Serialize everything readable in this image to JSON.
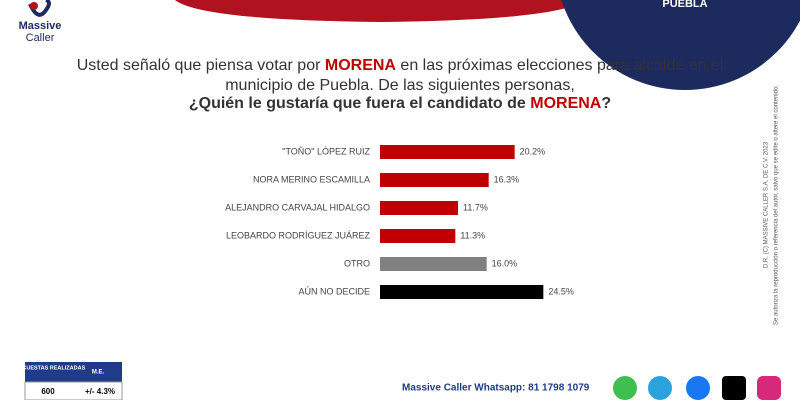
{
  "header": {
    "brand_line1": "Massive",
    "brand_line2": "Caller",
    "region": "PUEBLA"
  },
  "chart_data": {
    "type": "hbar",
    "question": [
      [
        {
          "text": "Usted señaló que piensa votar por ",
          "style": "normal"
        },
        {
          "text": "MORENA",
          "style": "bold-red"
        },
        {
          "text": " en las próximas elecciones para alcalde en el",
          "style": "normal"
        }
      ],
      [
        {
          "text": "municipio de Puebla.  De las siguientes personas,",
          "style": "normal"
        }
      ],
      [
        {
          "text": "¿Quién le gustaría que fuera el candidato de ",
          "style": "bold"
        },
        {
          "text": "MORENA",
          "style": "bold-red"
        },
        {
          "text": "?",
          "style": "bold"
        }
      ]
    ],
    "categories": [
      "\"TOÑO\" LÓPEZ RUIZ",
      "NORA MERINO ESCAMILLA",
      "ALEJANDRO CARVAJAL HIDALGO",
      "LEOBARDO RODRÍGUEZ JUÁREZ",
      "OTRO",
      "AÚN NO DECIDE"
    ],
    "values": [
      20.2,
      16.3,
      11.7,
      11.3,
      16.0,
      24.5
    ],
    "value_labels": [
      "20.2%",
      "16.3%",
      "11.7%",
      "11.3%",
      "16.0%",
      "24.5%"
    ],
    "colors": [
      "#c00000",
      "#c00000",
      "#c00000",
      "#c00000",
      "#808080",
      "#000000"
    ],
    "xlim": [
      0,
      30
    ]
  },
  "sidebar": {
    "line1": "D.R. (C) MASSIVE CALLER S.A. DE C.V. 2023",
    "line2": "Se autoriza la reproducción o referencia del autor, salvo que se edite o altere el contenido."
  },
  "footer_table": {
    "headers": [
      "ENCUESTAS REALIZADAS",
      "M.E."
    ],
    "values": [
      "600",
      "+/- 4.3%"
    ]
  },
  "contact": {
    "whatsapp": "Massive Caller Whatsapp: 81 1798 1079"
  }
}
